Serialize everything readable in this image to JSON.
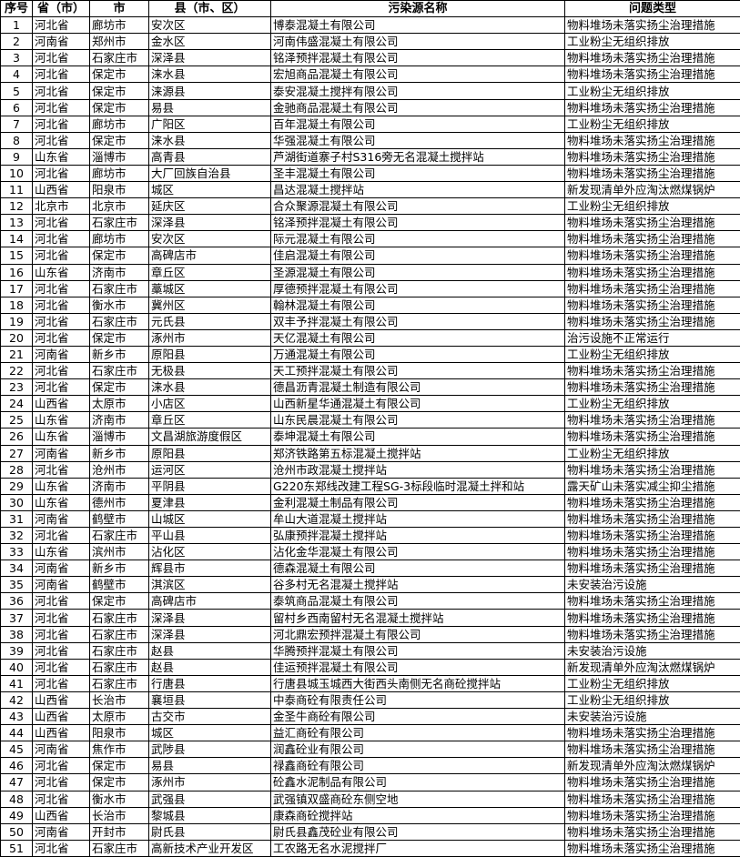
{
  "headers": [
    "序号",
    "省（市）",
    "市",
    "县（市、区）",
    "污染源名称",
    "问题类型"
  ],
  "rows": [
    [
      "1",
      "河北省",
      "廊坊市",
      "安次区",
      "博泰混凝土有限公司",
      "物料堆场未落实扬尘治理措施"
    ],
    [
      "2",
      "河南省",
      "郑州市",
      "金水区",
      "河南伟盛混凝土有限公司",
      "工业粉尘无组织排放"
    ],
    [
      "3",
      "河北省",
      "石家庄市",
      "深泽县",
      "铭泽预拌混凝土有限公司",
      "物料堆场未落实扬尘治理措施"
    ],
    [
      "4",
      "河北省",
      "保定市",
      "涞水县",
      "宏旭商品混凝土有限公司",
      "物料堆场未落实扬尘治理措施"
    ],
    [
      "5",
      "河北省",
      "保定市",
      "涞源县",
      "泰安混凝土搅拌有限公司",
      "工业粉尘无组织排放"
    ],
    [
      "6",
      "河北省",
      "保定市",
      "易县",
      "金驰商品混凝土有限公司",
      "物料堆场未落实扬尘治理措施"
    ],
    [
      "7",
      "河北省",
      "廊坊市",
      "广阳区",
      "百年混凝土有限公司",
      "工业粉尘无组织排放"
    ],
    [
      "8",
      "河北省",
      "保定市",
      "涞水县",
      "华强混凝土有限公司",
      "物料堆场未落实扬尘治理措施"
    ],
    [
      "9",
      "山东省",
      "淄博市",
      "高青县",
      "芦湖街道寨子村S316旁无名混凝土搅拌站",
      "物料堆场未落实扬尘治理措施"
    ],
    [
      "10",
      "河北省",
      "廊坊市",
      "大厂回族自治县",
      "圣丰混凝土有限公司",
      "物料堆场未落实扬尘治理措施"
    ],
    [
      "11",
      "山西省",
      "阳泉市",
      "城区",
      "昌达混凝土搅拌站",
      "新发现清单外应淘汰燃煤锅炉"
    ],
    [
      "12",
      "北京市",
      "北京市",
      "延庆区",
      "合众聚源混凝土有限公司",
      "工业粉尘无组织排放"
    ],
    [
      "13",
      "河北省",
      "石家庄市",
      "深泽县",
      "铭泽预拌混凝土有限公司",
      "物料堆场未落实扬尘治理措施"
    ],
    [
      "14",
      "河北省",
      "廊坊市",
      "安次区",
      "际元混凝土有限公司",
      "物料堆场未落实扬尘治理措施"
    ],
    [
      "15",
      "河北省",
      "保定市",
      "高碑店市",
      "佳启混凝土有限公司",
      "物料堆场未落实扬尘治理措施"
    ],
    [
      "16",
      "山东省",
      "济南市",
      "章丘区",
      "圣源混凝土有限公司",
      "物料堆场未落实扬尘治理措施"
    ],
    [
      "17",
      "河北省",
      "石家庄市",
      "藁城区",
      "厚德预拌混凝土有限公司",
      "物料堆场未落实扬尘治理措施"
    ],
    [
      "18",
      "河北省",
      "衡水市",
      "冀州区",
      "翰林混凝土有限公司",
      "物料堆场未落实扬尘治理措施"
    ],
    [
      "19",
      "河北省",
      "石家庄市",
      "元氏县",
      "双丰予拌混凝土有限公司",
      "物料堆场未落实扬尘治理措施"
    ],
    [
      "20",
      "河北省",
      "保定市",
      "涿州市",
      "天亿混凝土有限公司",
      "治污设施不正常运行"
    ],
    [
      "21",
      "河南省",
      "新乡市",
      "原阳县",
      "万通混凝土有限公司",
      "工业粉尘无组织排放"
    ],
    [
      "22",
      "河北省",
      "石家庄市",
      "无极县",
      "天工预拌混凝土有限公司",
      "物料堆场未落实扬尘治理措施"
    ],
    [
      "23",
      "河北省",
      "保定市",
      "涞水县",
      "德昌沥青混凝土制造有限公司",
      "物料堆场未落实扬尘治理措施"
    ],
    [
      "24",
      "山西省",
      "太原市",
      "小店区",
      "山西新星华通混凝土有限公司",
      "工业粉尘无组织排放"
    ],
    [
      "25",
      "山东省",
      "济南市",
      "章丘区",
      "山东民晨混凝土有限公司",
      "物料堆场未落实扬尘治理措施"
    ],
    [
      "26",
      "山东省",
      "淄博市",
      "文昌湖旅游度假区",
      "泰坤混凝土有限公司",
      "物料堆场未落实扬尘治理措施"
    ],
    [
      "27",
      "河南省",
      "新乡市",
      "原阳县",
      "郑济铁路第五标混凝土搅拌站",
      "工业粉尘无组织排放"
    ],
    [
      "28",
      "河北省",
      "沧州市",
      "运河区",
      "沧州市政混凝土搅拌站",
      "物料堆场未落实扬尘治理措施"
    ],
    [
      "29",
      "山东省",
      "济南市",
      "平阴县",
      "G220东郑线改建工程SG-3标段临时混凝土拌和站",
      "露天矿山未落实减尘抑尘措施"
    ],
    [
      "30",
      "山东省",
      "德州市",
      "夏津县",
      "金利混凝土制品有限公司",
      "物料堆场未落实扬尘治理措施"
    ],
    [
      "31",
      "河南省",
      "鹤壁市",
      "山城区",
      "牟山大道混凝土搅拌站",
      "物料堆场未落实扬尘治理措施"
    ],
    [
      "32",
      "河北省",
      "石家庄市",
      "平山县",
      "弘康预拌混凝土搅拌站",
      "物料堆场未落实扬尘治理措施"
    ],
    [
      "33",
      "山东省",
      "滨州市",
      "沾化区",
      "沾化金华混凝土有限公司",
      "物料堆场未落实扬尘治理措施"
    ],
    [
      "34",
      "河南省",
      "新乡市",
      "辉县市",
      "德森混凝土有限公司",
      "物料堆场未落实扬尘治理措施"
    ],
    [
      "35",
      "河南省",
      "鹤壁市",
      "淇滨区",
      "谷多村无名混凝土搅拌站",
      "未安装治污设施"
    ],
    [
      "36",
      "河北省",
      "保定市",
      "高碑店市",
      "泰筑商品混凝土有限公司",
      "物料堆场未落实扬尘治理措施"
    ],
    [
      "37",
      "河北省",
      "石家庄市",
      "深泽县",
      "留村乡西南留村无名混凝土搅拌站",
      "物料堆场未落实扬尘治理措施"
    ],
    [
      "38",
      "河北省",
      "石家庄市",
      "深泽县",
      "河北鼎宏预拌混凝土有限公司",
      "物料堆场未落实扬尘治理措施"
    ],
    [
      "39",
      "河北省",
      "石家庄市",
      "赵县",
      "华腾预拌混凝土有限公司",
      "未安装治污设施"
    ],
    [
      "40",
      "河北省",
      "石家庄市",
      "赵县",
      "佳运预拌混凝土有限公司",
      "新发现清单外应淘汰燃煤锅炉"
    ],
    [
      "41",
      "河北省",
      "石家庄市",
      "行唐县",
      "行唐县城玉城西大街西头南侧无名商砼搅拌站",
      "工业粉尘无组织排放"
    ],
    [
      "42",
      "山西省",
      "长治市",
      "襄垣县",
      "中泰商砼有限责任公司",
      "工业粉尘无组织排放"
    ],
    [
      "43",
      "山西省",
      "太原市",
      "古交市",
      "金圣牛商砼有限公司",
      "未安装治污设施"
    ],
    [
      "44",
      "山西省",
      "阳泉市",
      "城区",
      "益汇商砼有限公司",
      "物料堆场未落实扬尘治理措施"
    ],
    [
      "45",
      "河南省",
      "焦作市",
      "武陟县",
      "润鑫砼业有限公司",
      "物料堆场未落实扬尘治理措施"
    ],
    [
      "46",
      "河北省",
      "保定市",
      "易县",
      "禄鑫商砼有限公司",
      "新发现清单外应淘汰燃煤锅炉"
    ],
    [
      "47",
      "河北省",
      "保定市",
      "涿州市",
      "砼鑫水泥制品有限公司",
      "物料堆场未落实扬尘治理措施"
    ],
    [
      "48",
      "河北省",
      "衡水市",
      "武强县",
      "武强镇双盛商砼东侧空地",
      "物料堆场未落实扬尘治理措施"
    ],
    [
      "49",
      "山西省",
      "长治市",
      "黎城县",
      "康森商砼搅拌站",
      "物料堆场未落实扬尘治理措施"
    ],
    [
      "50",
      "河南省",
      "开封市",
      "尉氏县",
      "尉氏县鑫茂砼业有限公司",
      "物料堆场未落实扬尘治理措施"
    ],
    [
      "51",
      "河北省",
      "石家庄市",
      "高新技术产业开发区",
      "工农路无名水泥搅拌厂",
      "物料堆场未落实扬尘治理措施"
    ]
  ]
}
